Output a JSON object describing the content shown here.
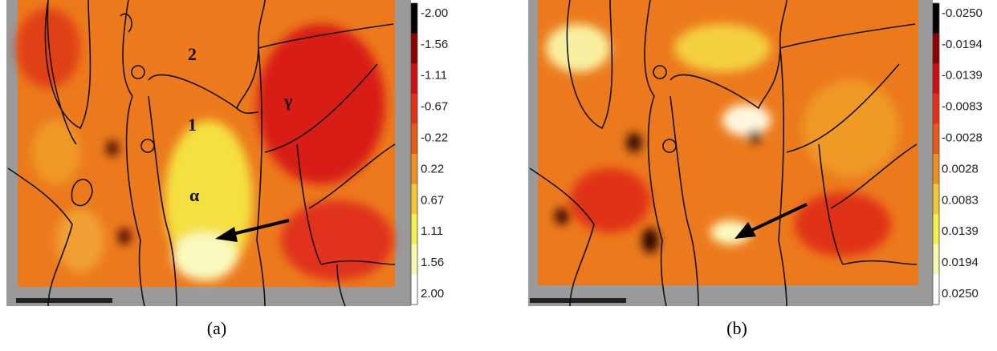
{
  "panels": [
    {
      "caption": "(a)",
      "annotations": [
        "2",
        "1",
        "α",
        "γ"
      ],
      "colorbar": {
        "ticks": [
          "-2.00",
          "-1.56",
          "-1.11",
          "-0.67",
          "-0.22",
          "0.22",
          "0.67",
          "1.11",
          "1.56",
          "2.00"
        ]
      }
    },
    {
      "caption": "(b)",
      "annotations": [],
      "colorbar": {
        "ticks": [
          "-0.0250",
          "-0.0194",
          "-0.0139",
          "-0.0083",
          "-0.0028",
          "0.0028",
          "0.0083",
          "0.0139",
          "0.0194",
          "0.0250"
        ]
      }
    }
  ]
}
